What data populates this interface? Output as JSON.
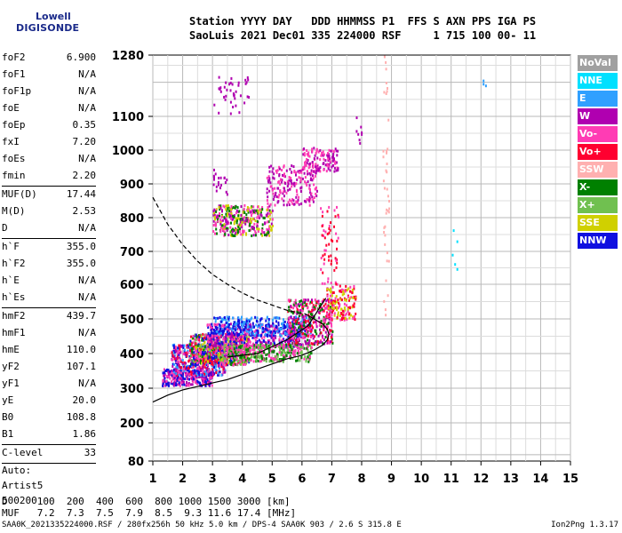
{
  "logo": {
    "line1": "Lowell",
    "line2": "DIGISONDE"
  },
  "header": {
    "line1": "Station YYYY DAY   DDD HHMMSS P1  FFS S AXN PPS IGA PS",
    "line2": "SaoLuis 2021 Dec01 335 224000 RSF     1 715 100 00- 11"
  },
  "params": [
    {
      "label": "foF2",
      "value": "6.900"
    },
    {
      "label": "foF1",
      "value": "N/A"
    },
    {
      "label": "foF1p",
      "value": "N/A"
    },
    {
      "label": "foE",
      "value": "N/A"
    },
    {
      "label": "foEp",
      "value": "0.35"
    },
    {
      "label": "fxI",
      "value": "7.20"
    },
    {
      "label": "foEs",
      "value": "N/A"
    },
    {
      "label": "fmin",
      "value": "2.20"
    },
    {
      "sep": true
    },
    {
      "label": "MUF(D)",
      "value": "17.44"
    },
    {
      "label": "M(D)",
      "value": "2.53"
    },
    {
      "label": "D",
      "value": "N/A"
    },
    {
      "sep": true
    },
    {
      "label": "h`F",
      "value": "355.0"
    },
    {
      "label": "h`F2",
      "value": "355.0"
    },
    {
      "label": "h`E",
      "value": "N/A"
    },
    {
      "label": "h`Es",
      "value": "N/A"
    },
    {
      "sep": true
    },
    {
      "label": "hmF2",
      "value": "439.7"
    },
    {
      "label": "hmF1",
      "value": "N/A"
    },
    {
      "label": "hmE",
      "value": "110.0"
    },
    {
      "label": "yF2",
      "value": "107.1"
    },
    {
      "label": "yF1",
      "value": "N/A"
    },
    {
      "label": "yE",
      "value": "20.0"
    },
    {
      "label": "B0",
      "value": "108.8"
    },
    {
      "label": "B1",
      "value": "1.86"
    },
    {
      "sep": true
    },
    {
      "label": "C-level",
      "value": "33"
    },
    {
      "sep": true
    },
    {
      "text": "Auto:"
    },
    {
      "text": "Artist5"
    },
    {
      "text": "500200"
    }
  ],
  "legend": [
    {
      "label": "NoVal",
      "color": "#a0a0a0"
    },
    {
      "label": "NNE",
      "color": "#00e0ff"
    },
    {
      "label": "E",
      "color": "#30a0ff"
    },
    {
      "label": "W",
      "color": "#b000b0"
    },
    {
      "label": "Vo-",
      "color": "#ff3cb4"
    },
    {
      "label": "Vo+",
      "color": "#ff0030"
    },
    {
      "label": "SSW",
      "color": "#ffb0b0"
    },
    {
      "label": "X-",
      "color": "#008000"
    },
    {
      "label": "X+",
      "color": "#70c050"
    },
    {
      "label": "SSE",
      "color": "#d0d000"
    },
    {
      "label": "NNW",
      "color": "#1010e0"
    }
  ],
  "dtable": {
    "line1": "D     100  200  400  600  800 1000 1500 3000 [km]",
    "line2": "MUF   7.2  7.3  7.5  7.9  8.5  9.3 11.6 17.4 [MHz]"
  },
  "footer": "SAA0K_2021335224000.RSF / 280fx256h 50 kHz 5.0 km / DPS-4 SAA0K 903 / 2.6 S 315.8 E",
  "version": "Ion2Png 1.3.17",
  "chart_data": {
    "type": "scatter",
    "xlim": [
      1,
      15
    ],
    "ylim": [
      80,
      1280
    ],
    "x_ticks": [
      1,
      2,
      3,
      4,
      5,
      6,
      7,
      8,
      9,
      10,
      11,
      12,
      13,
      14,
      15
    ],
    "y_ticks": [
      80,
      200,
      300,
      400,
      500,
      600,
      700,
      800,
      900,
      1000,
      1100,
      1280
    ],
    "grid": true,
    "series": [
      {
        "kind": "clusters",
        "clusters": [
          {
            "fx": [
              1.3,
              3.0
            ],
            "fy": [
              310,
              360
            ],
            "colors": [
              "#1010e0",
              "#ff3cb4",
              "#b000b0"
            ],
            "n": 300
          },
          {
            "fx": [
              1.6,
              3.4
            ],
            "fy": [
              340,
              430
            ],
            "colors": [
              "#1010e0",
              "#ff3cb4",
              "#b000b0",
              "#30a0ff",
              "#ff0030"
            ],
            "n": 500
          },
          {
            "fx": [
              2.2,
              4.2
            ],
            "fy": [
              370,
              460
            ],
            "colors": [
              "#1010e0",
              "#ff3cb4",
              "#008000",
              "#70c050",
              "#d0d000",
              "#ff0030"
            ],
            "n": 600
          },
          {
            "fx": [
              2.8,
              6.0
            ],
            "fy": [
              420,
              490
            ],
            "colors": [
              "#1010e0",
              "#ff3cb4",
              "#b000b0"
            ],
            "n": 500
          },
          {
            "fx": [
              3.0,
              6.3
            ],
            "fy": [
              455,
              510
            ],
            "colors": [
              "#1010e0",
              "#30a0ff"
            ],
            "n": 300
          },
          {
            "fx": [
              3.3,
              6.3
            ],
            "fy": [
              380,
              430
            ],
            "colors": [
              "#008000",
              "#70c050",
              "#ff3cb4"
            ],
            "n": 400
          },
          {
            "fx": [
              5.5,
              7.0
            ],
            "fy": [
              430,
              560
            ],
            "colors": [
              "#ff3cb4",
              "#ff0030",
              "#b000b0",
              "#008000"
            ],
            "n": 400
          },
          {
            "fx": [
              6.8,
              7.8
            ],
            "fy": [
              500,
              600
            ],
            "colors": [
              "#ff3cb4",
              "#d0d000",
              "#ff0030"
            ],
            "n": 150
          },
          {
            "fx": [
              6.6,
              7.2
            ],
            "fy": [
              600,
              840
            ],
            "colors": [
              "#ff0030",
              "#ff3cb4"
            ],
            "n": 60
          },
          {
            "fx": [
              3.0,
              5.0
            ],
            "fy": [
              750,
              840
            ],
            "colors": [
              "#b000b0",
              "#ff3cb4",
              "#d0d000",
              "#008000"
            ],
            "n": 350
          },
          {
            "fx": [
              4.8,
              6.5
            ],
            "fy": [
              840,
              960
            ],
            "colors": [
              "#b000b0",
              "#ff3cb4"
            ],
            "n": 200
          },
          {
            "fx": [
              6.0,
              7.2
            ],
            "fy": [
              940,
              1010
            ],
            "colors": [
              "#b000b0",
              "#ff3cb4"
            ],
            "n": 120
          },
          {
            "fx": [
              3.0,
              3.5
            ],
            "fy": [
              870,
              950
            ],
            "colors": [
              "#b000b0"
            ],
            "n": 20
          },
          {
            "fx": [
              3.0,
              4.2
            ],
            "fy": [
              1110,
              1220
            ],
            "colors": [
              "#b000b0"
            ],
            "n": 40
          },
          {
            "fx": [
              8.7,
              8.9
            ],
            "fy": [
              480,
              1280
            ],
            "colors": [
              "#ffb0b0"
            ],
            "n": 40
          },
          {
            "fx": [
              7.8,
              8.0
            ],
            "fy": [
              1020,
              1100
            ],
            "colors": [
              "#b000b0"
            ],
            "n": 8
          },
          {
            "fx": [
              11.0,
              11.2
            ],
            "fy": [
              640,
              770
            ],
            "colors": [
              "#00e0ff"
            ],
            "n": 5
          },
          {
            "fx": [
              12.0,
              12.2
            ],
            "fy": [
              1190,
              1210
            ],
            "colors": [
              "#30a0ff"
            ],
            "n": 3
          }
        ]
      },
      {
        "kind": "profile_line",
        "style": "solid",
        "x": [
          1.0,
          1.5,
          2.0,
          2.5,
          3.0,
          3.5,
          4.0,
          4.5,
          5.0,
          5.5,
          6.0,
          6.4,
          6.7,
          6.85,
          6.9,
          6.85,
          6.7,
          6.4,
          6.1
        ],
        "y": [
          260,
          280,
          295,
          305,
          315,
          325,
          340,
          355,
          370,
          385,
          395,
          410,
          425,
          440,
          455,
          470,
          485,
          500,
          515
        ]
      },
      {
        "kind": "profile_line",
        "style": "dashed",
        "x": [
          1.0,
          1.5,
          2.0,
          2.5,
          3.0,
          3.5,
          4.0,
          4.5,
          5.0,
          5.5,
          6.0,
          6.1
        ],
        "y": [
          860,
          780,
          720,
          670,
          630,
          600,
          575,
          555,
          540,
          525,
          515,
          515
        ]
      },
      {
        "kind": "profile_line",
        "style": "solid",
        "x": [
          3.5,
          4.5,
          5.5,
          6.2,
          6.8
        ],
        "y": [
          390,
          400,
          440,
          480,
          560
        ]
      }
    ]
  }
}
